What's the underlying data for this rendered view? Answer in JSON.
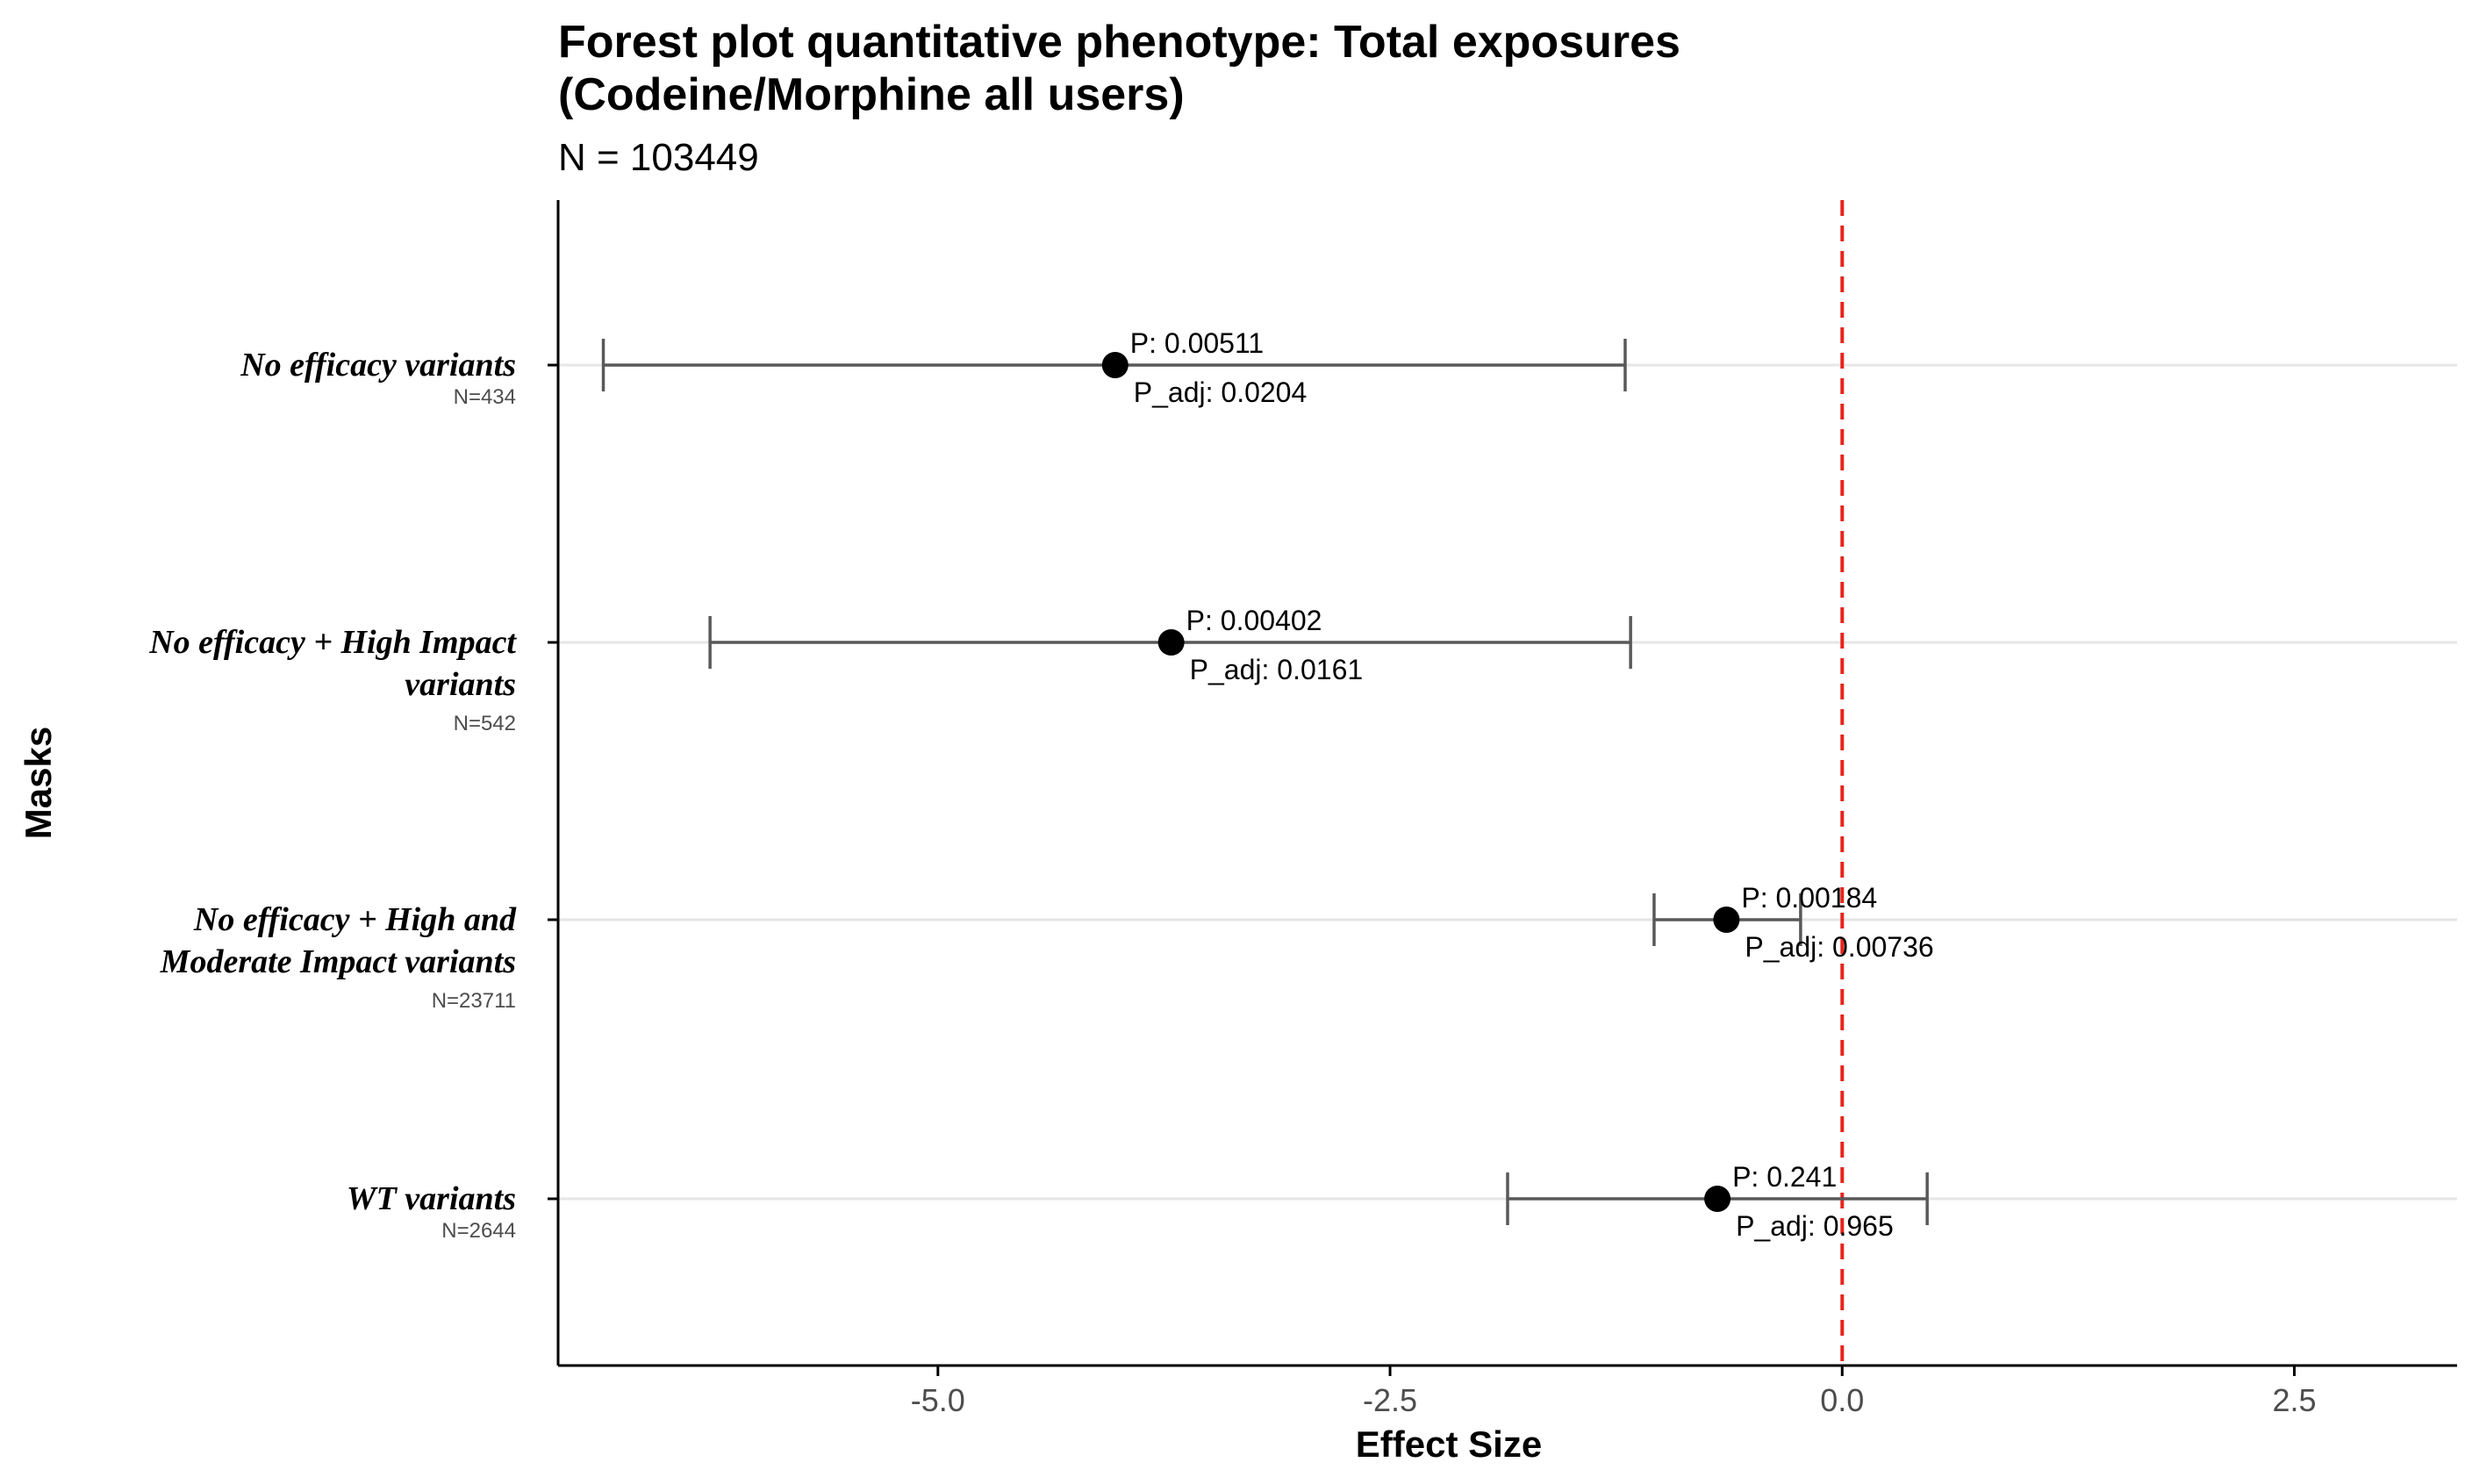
{
  "chart_data": {
    "type": "scatter",
    "subtype": "forest",
    "title_line1": "Forest plot quantitative phenotype: Total exposures",
    "title_line2": "(Codeine/Morphine all users)",
    "subtitle": "N = 103449",
    "xlabel": "Effect Size",
    "ylabel": "Masks",
    "xlim": [
      -7.1,
      3.4
    ],
    "xticks": [
      -5.0,
      -2.5,
      0.0,
      2.5
    ],
    "xtick_labels": [
      "-5.0",
      "-2.5",
      "0.0",
      "2.5"
    ],
    "reference_line": {
      "x": 0.0,
      "color": "#e8241a",
      "style": "dashed"
    },
    "grid": "horizontal",
    "series": [
      {
        "points": [
          {
            "label": [
              "No efficacy variants"
            ],
            "n": "N=434",
            "estimate": -4.02,
            "lower": -6.85,
            "upper": -1.2,
            "p": "P: 0.00511",
            "p_adj": "P_adj: 0.0204"
          },
          {
            "label": [
              "No efficacy + High Impact",
              "variants"
            ],
            "n": "N=542",
            "estimate": -3.71,
            "lower": -6.26,
            "upper": -1.17,
            "p": "P: 0.00402",
            "p_adj": "P_adj: 0.0161"
          },
          {
            "label": [
              "No efficacy + High and",
              "Moderate Impact variants"
            ],
            "n": "N=23711",
            "estimate": -0.64,
            "lower": -1.04,
            "upper": -0.23,
            "p": "P: 0.00184",
            "p_adj": "P_adj: 0.00736"
          },
          {
            "label": [
              "WT variants"
            ],
            "n": "N=2644",
            "estimate": -0.69,
            "lower": -1.85,
            "upper": 0.47,
            "p": "P: 0.241",
            "p_adj": "P_adj: 0.965"
          }
        ]
      }
    ]
  },
  "colors": {
    "point": "#000000",
    "errorbar": "#595959",
    "grid": "#e6e6e6",
    "axis": "#000000",
    "tick_label": "#4d4d4d",
    "n_label": "#4d4d4d"
  }
}
